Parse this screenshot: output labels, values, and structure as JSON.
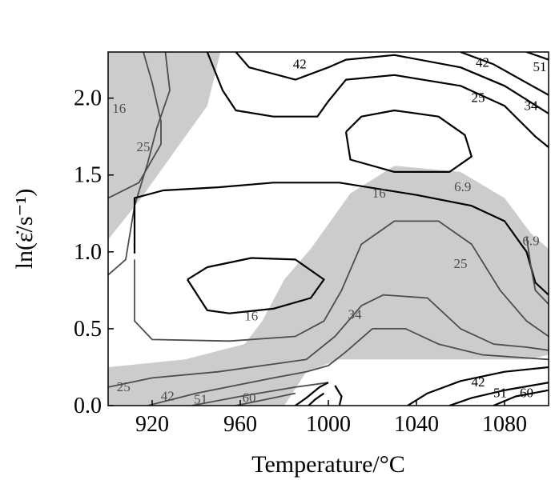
{
  "chart_data": {
    "type": "contour",
    "title": "",
    "xlabel": "Temperature/°C",
    "ylabel": "ln(ε̇/s⁻¹)",
    "xlim": [
      900,
      1100
    ],
    "ylim": [
      0.0,
      2.3
    ],
    "x_ticks": [
      {
        "value": 920,
        "label": "920"
      },
      {
        "value": 960,
        "label": "960"
      },
      {
        "value": 1000,
        "label": "1000"
      },
      {
        "value": 1040,
        "label": "1040"
      },
      {
        "value": 1080,
        "label": "1080"
      }
    ],
    "y_ticks": [
      {
        "value": 0.0,
        "label": "0.0"
      },
      {
        "value": 0.5,
        "label": "0.5"
      },
      {
        "value": 1.0,
        "label": "1.0"
      },
      {
        "value": 1.5,
        "label": "1.5"
      },
      {
        "value": 2.0,
        "label": "2.0"
      }
    ],
    "shaded_color": "#cccccc",
    "shaded_regions": [
      [
        [
          900,
          2.3
        ],
        [
          951,
          2.3
        ],
        [
          945,
          1.95
        ],
        [
          930,
          1.65
        ],
        [
          915,
          1.35
        ],
        [
          900,
          1.08
        ]
      ],
      [
        [
          900,
          0.25
        ],
        [
          935,
          0.3
        ],
        [
          962,
          0.4
        ],
        [
          970,
          0.55
        ],
        [
          980,
          0.82
        ],
        [
          992,
          1.02
        ],
        [
          1010,
          1.38
        ],
        [
          1030,
          1.56
        ],
        [
          1060,
          1.52
        ],
        [
          1080,
          1.35
        ],
        [
          1092,
          1.12
        ],
        [
          1100,
          1.02
        ],
        [
          1100,
          0.33
        ],
        [
          1090,
          0.3
        ],
        [
          1005,
          0.3
        ],
        [
          990,
          0.22
        ],
        [
          980,
          0.0
        ],
        [
          900,
          0.0
        ]
      ]
    ],
    "contour_lines": [
      {
        "level": "6.9",
        "style": "dark",
        "points": [
          [
            1008,
            1.78
          ],
          [
            1015,
            1.88
          ],
          [
            1030,
            1.92
          ],
          [
            1050,
            1.88
          ],
          [
            1062,
            1.76
          ],
          [
            1065,
            1.62
          ],
          [
            1055,
            1.52
          ],
          [
            1030,
            1.52
          ],
          [
            1010,
            1.6
          ],
          [
            1008,
            1.78
          ]
        ]
      },
      {
        "level": "16",
        "style": "dark",
        "points": [
          [
            936,
            0.82
          ],
          [
            945,
            0.9
          ],
          [
            965,
            0.96
          ],
          [
            985,
            0.95
          ],
          [
            998,
            0.82
          ],
          [
            992,
            0.7
          ],
          [
            975,
            0.63
          ],
          [
            955,
            0.6
          ],
          [
            945,
            0.62
          ],
          [
            936,
            0.82
          ]
        ]
      },
      {
        "level": "16",
        "style": "dark",
        "points": [
          [
            945,
            2.3
          ],
          [
            952,
            2.05
          ],
          [
            958,
            1.92
          ],
          [
            975,
            1.88
          ],
          [
            995,
            1.88
          ],
          [
            1000,
            1.98
          ],
          [
            1008,
            2.12
          ],
          [
            1030,
            2.15
          ],
          [
            1060,
            2.08
          ],
          [
            1080,
            1.95
          ],
          [
            1094,
            1.75
          ],
          [
            1100,
            1.68
          ]
        ]
      },
      {
        "level": "16",
        "style": "grey",
        "points": [
          [
            900,
            0.85
          ],
          [
            908,
            0.95
          ],
          [
            912,
            1.3
          ],
          [
            918,
            1.58
          ],
          [
            922,
            1.8
          ],
          [
            928,
            2.05
          ],
          [
            926,
            2.3
          ]
        ]
      },
      {
        "level": "25",
        "style": "grey",
        "points": [
          [
            916,
            2.3
          ],
          [
            920,
            2.1
          ],
          [
            924,
            1.85
          ],
          [
            924,
            1.7
          ],
          [
            918,
            1.55
          ],
          [
            914,
            1.45
          ],
          [
            900,
            1.35
          ]
        ]
      },
      {
        "level": "25",
        "style": "dark",
        "points": [
          [
            958,
            2.3
          ],
          [
            964,
            2.2
          ],
          [
            985,
            2.12
          ],
          [
            1000,
            2.2
          ],
          [
            1008,
            2.25
          ],
          [
            1030,
            2.28
          ],
          [
            1060,
            2.2
          ],
          [
            1080,
            2.08
          ],
          [
            1100,
            1.9
          ]
        ]
      },
      {
        "level": "34",
        "style": "dark",
        "points": [
          [
            1060,
            2.3
          ],
          [
            1075,
            2.22
          ],
          [
            1090,
            2.1
          ],
          [
            1100,
            2.02
          ]
        ]
      },
      {
        "level": "42",
        "style": "dark",
        "points": [
          [
            1090,
            2.3
          ],
          [
            1100,
            2.25
          ]
        ]
      },
      {
        "level": "16",
        "style": "dark",
        "points": [
          [
            912,
            0.99
          ],
          [
            912,
            1.35
          ],
          [
            925,
            1.4
          ],
          [
            950,
            1.42
          ],
          [
            975,
            1.45
          ],
          [
            1005,
            1.45
          ],
          [
            1040,
            1.37
          ],
          [
            1065,
            1.3
          ],
          [
            1080,
            1.2
          ],
          [
            1090,
            1.0
          ],
          [
            1094,
            0.8
          ],
          [
            1100,
            0.72
          ]
        ]
      },
      {
        "level": "6.9",
        "style": "grey",
        "points": [
          [
            1090,
            1.1
          ],
          [
            1092,
            0.9
          ],
          [
            1094,
            0.75
          ],
          [
            1100,
            0.66
          ]
        ]
      },
      {
        "level": "25",
        "style": "grey",
        "points": [
          [
            912,
            0.95
          ],
          [
            912,
            0.55
          ],
          [
            920,
            0.43
          ],
          [
            955,
            0.42
          ],
          [
            985,
            0.45
          ],
          [
            998,
            0.55
          ],
          [
            1006,
            0.75
          ],
          [
            1015,
            1.05
          ],
          [
            1030,
            1.2
          ],
          [
            1050,
            1.2
          ],
          [
            1065,
            1.05
          ],
          [
            1078,
            0.75
          ],
          [
            1090,
            0.55
          ],
          [
            1100,
            0.45
          ]
        ]
      },
      {
        "level": "34",
        "style": "grey",
        "points": [
          [
            900,
            0.12
          ],
          [
            920,
            0.18
          ],
          [
            950,
            0.22
          ],
          [
            975,
            0.27
          ],
          [
            990,
            0.3
          ],
          [
            1003,
            0.45
          ],
          [
            1015,
            0.65
          ],
          [
            1025,
            0.72
          ],
          [
            1045,
            0.7
          ],
          [
            1060,
            0.5
          ],
          [
            1075,
            0.4
          ],
          [
            1090,
            0.38
          ],
          [
            1100,
            0.36
          ]
        ]
      },
      {
        "level": "42",
        "style": "grey",
        "points": [
          [
            918,
            0.0
          ],
          [
            940,
            0.08
          ],
          [
            975,
            0.18
          ],
          [
            990,
            0.22
          ],
          [
            1000,
            0.26
          ],
          [
            1008,
            0.35
          ],
          [
            1020,
            0.5
          ],
          [
            1035,
            0.5
          ],
          [
            1050,
            0.4
          ],
          [
            1070,
            0.33
          ],
          [
            1100,
            0.3
          ]
        ]
      },
      {
        "level": "51",
        "style": "grey",
        "points": [
          [
            938,
            0.0
          ],
          [
            960,
            0.06
          ],
          [
            985,
            0.12
          ],
          [
            1000,
            0.15
          ]
        ]
      },
      {
        "level": "60",
        "style": "grey",
        "points": [
          [
            958,
            0.0
          ],
          [
            975,
            0.05
          ],
          [
            985,
            0.08
          ]
        ]
      },
      {
        "level": "",
        "style": "dark",
        "points": [
          [
            985,
            0.0
          ],
          [
            990,
            0.05
          ],
          [
            996,
            0.12
          ],
          [
            1000,
            0.15
          ]
        ]
      },
      {
        "level": "",
        "style": "dark",
        "points": [
          [
            991,
            0.0
          ],
          [
            994,
            0.04
          ],
          [
            998,
            0.08
          ]
        ]
      },
      {
        "level": "",
        "style": "dark",
        "points": [
          [
            1005,
            0.0
          ],
          [
            1006,
            0.06
          ],
          [
            1003,
            0.13
          ]
        ]
      },
      {
        "level": "42",
        "style": "dark",
        "points": [
          [
            1036,
            0.0
          ],
          [
            1045,
            0.08
          ],
          [
            1060,
            0.16
          ],
          [
            1080,
            0.22
          ],
          [
            1100,
            0.25
          ]
        ]
      },
      {
        "level": "51",
        "style": "dark",
        "points": [
          [
            1055,
            0.0
          ],
          [
            1065,
            0.05
          ],
          [
            1080,
            0.1
          ],
          [
            1100,
            0.15
          ]
        ]
      },
      {
        "level": "60",
        "style": "dark",
        "points": [
          [
            1075,
            0.0
          ],
          [
            1085,
            0.06
          ],
          [
            1100,
            0.1
          ]
        ]
      }
    ],
    "contour_labels": [
      {
        "text": "42",
        "x": 987,
        "y": 2.22,
        "style": "dark"
      },
      {
        "text": "42",
        "x": 1070,
        "y": 2.23,
        "style": "dark"
      },
      {
        "text": "51",
        "x": 1096,
        "y": 2.2,
        "style": "dark"
      },
      {
        "text": "25",
        "x": 1068,
        "y": 2.0,
        "style": "dark"
      },
      {
        "text": "34",
        "x": 1092,
        "y": 1.95,
        "style": "dark"
      },
      {
        "text": "16",
        "x": 905,
        "y": 1.93,
        "style": "grey"
      },
      {
        "text": "25",
        "x": 916,
        "y": 1.68,
        "style": "grey"
      },
      {
        "text": "16",
        "x": 1023,
        "y": 1.38,
        "style": "grey"
      },
      {
        "text": "6.9",
        "x": 1061,
        "y": 1.42,
        "style": "grey"
      },
      {
        "text": "6.9",
        "x": 1092,
        "y": 1.07,
        "style": "grey"
      },
      {
        "text": "25",
        "x": 1060,
        "y": 0.92,
        "style": "grey"
      },
      {
        "text": "16",
        "x": 965,
        "y": 0.58,
        "style": "grey"
      },
      {
        "text": "34",
        "x": 1012,
        "y": 0.59,
        "style": "grey"
      },
      {
        "text": "25",
        "x": 907,
        "y": 0.12,
        "style": "grey"
      },
      {
        "text": "42",
        "x": 927,
        "y": 0.06,
        "style": "grey"
      },
      {
        "text": "51",
        "x": 942,
        "y": 0.04,
        "style": "grey"
      },
      {
        "text": "60",
        "x": 964,
        "y": 0.05,
        "style": "grey"
      },
      {
        "text": "42",
        "x": 1068,
        "y": 0.15,
        "style": "dark"
      },
      {
        "text": "51",
        "x": 1078,
        "y": 0.08,
        "style": "dark"
      },
      {
        "text": "60",
        "x": 1090,
        "y": 0.08,
        "style": "dark"
      }
    ],
    "colors": {
      "dark": "#000000",
      "grey": "#4d4d4d"
    }
  }
}
